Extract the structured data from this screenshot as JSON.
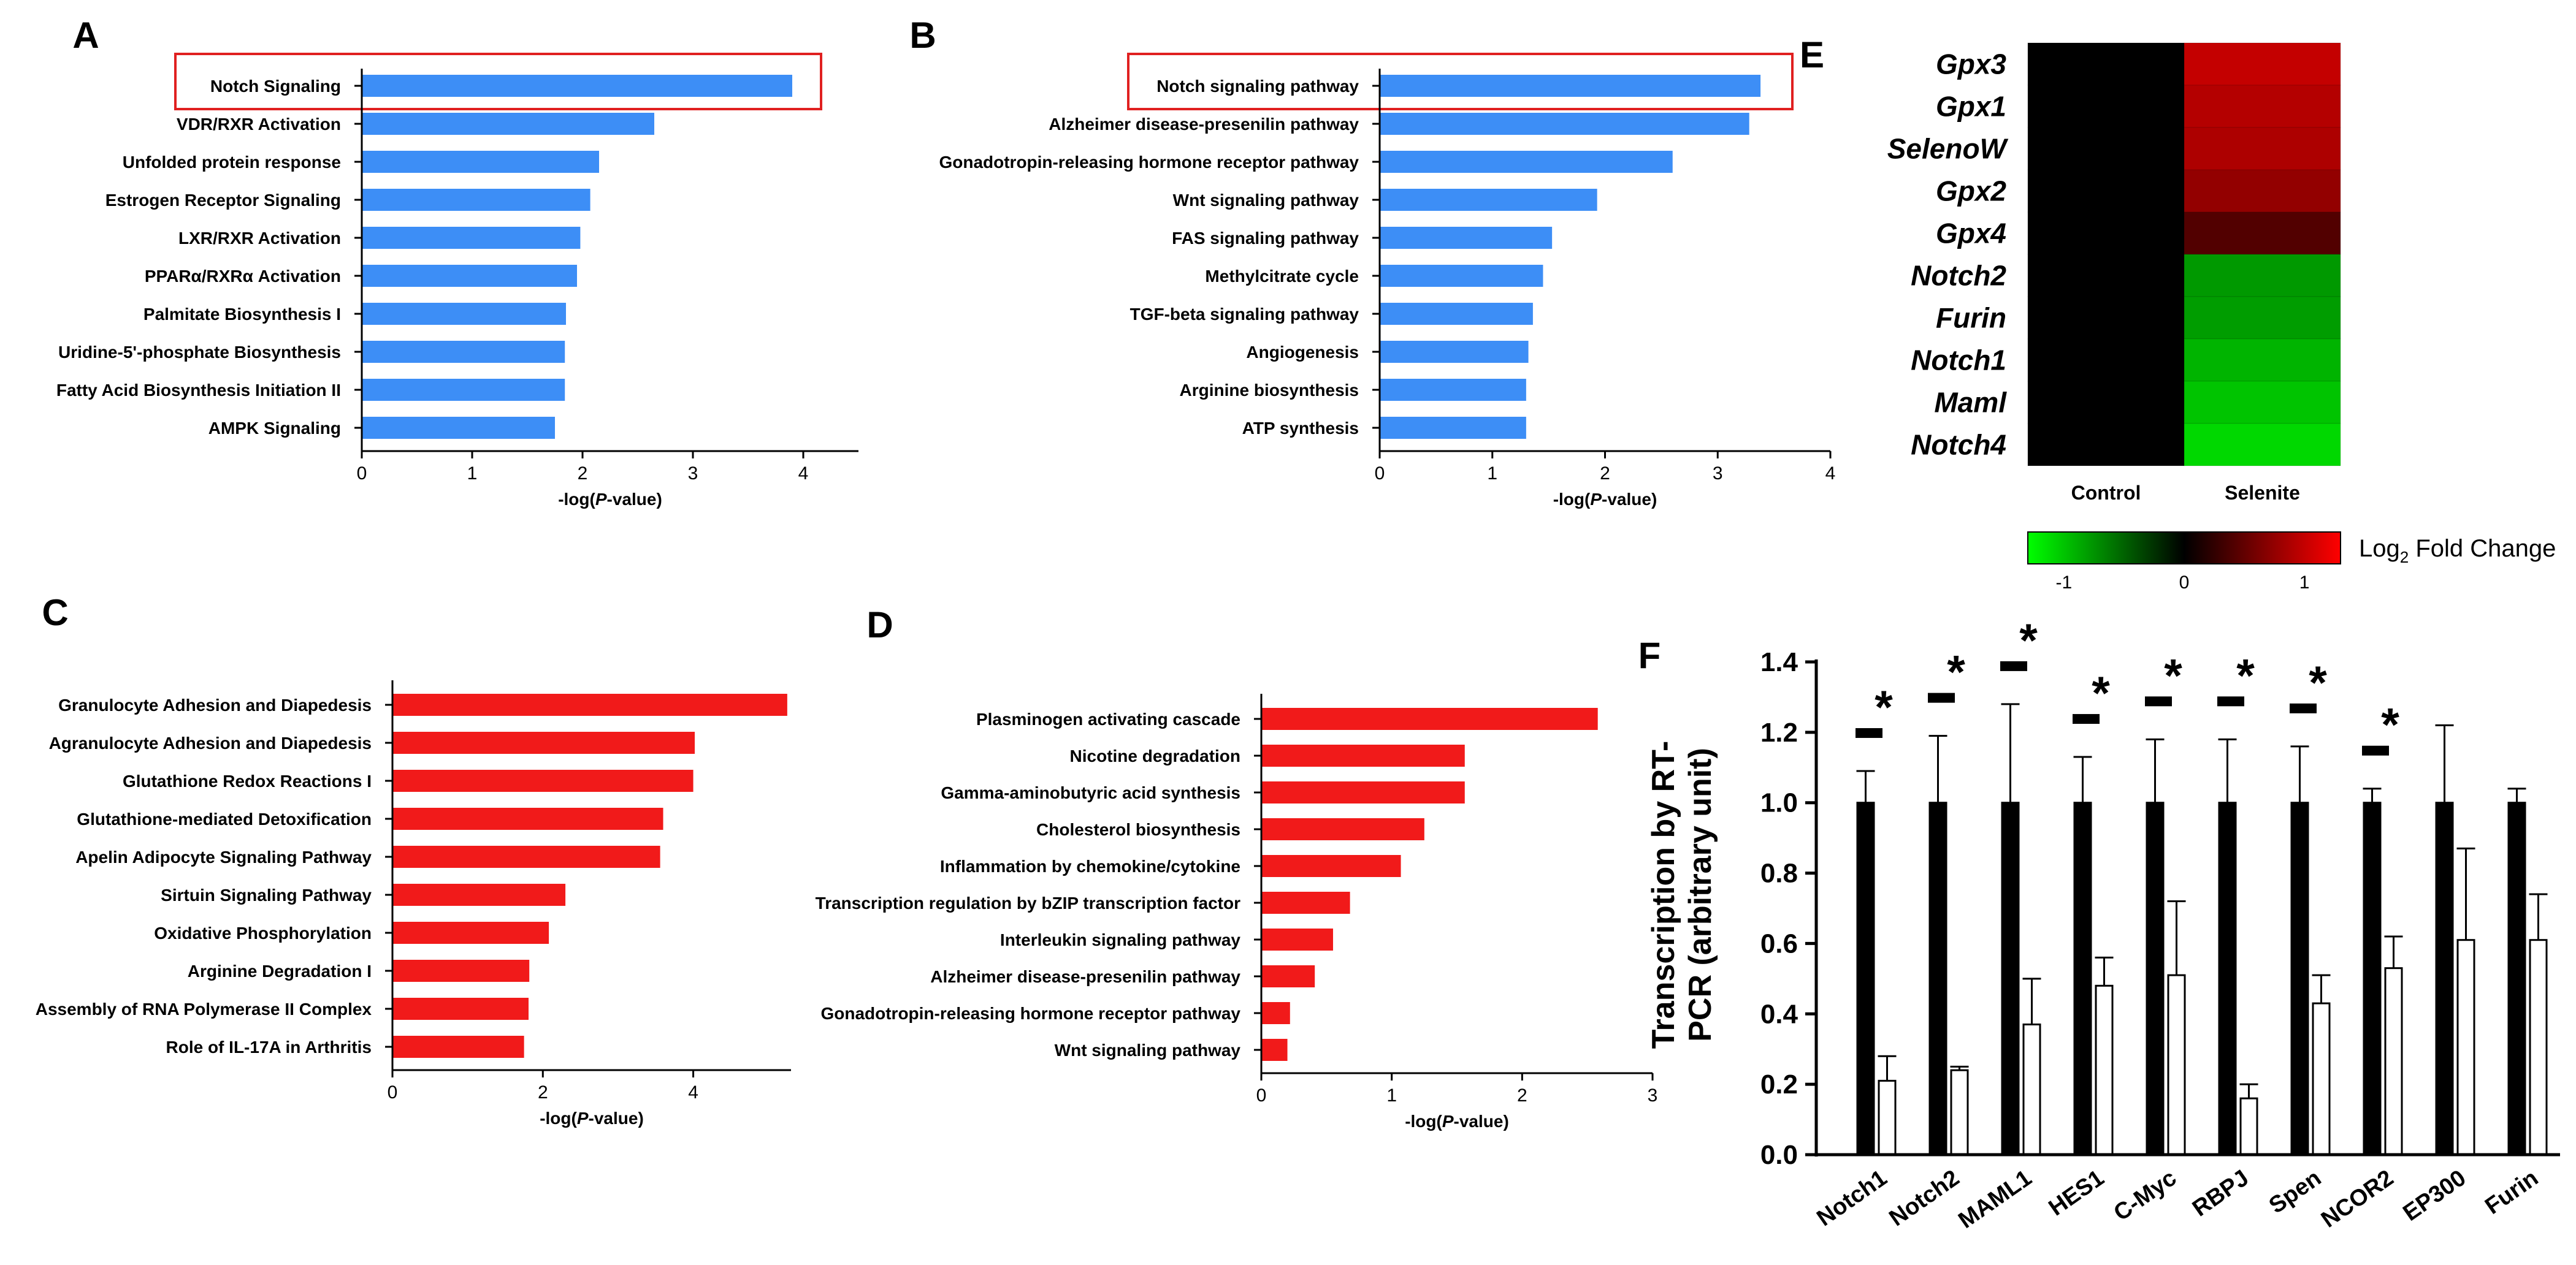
{
  "figure": {
    "panel_labels": [
      "A",
      "B",
      "C",
      "D",
      "E",
      "F"
    ],
    "colors": {
      "blue_bar": "#3d8ef6",
      "red_bar": "#f11a1a",
      "highlight_box": "#e02020",
      "control_bar": "#000000",
      "selenite_bar": "#ffffff"
    }
  },
  "chart_data": [
    {
      "panel": "A",
      "type": "bar",
      "orientation": "horizontal",
      "categories": [
        "Notch Signaling",
        "VDR/RXR Activation",
        "Unfolded protein response",
        "Estrogen Receptor Signaling",
        "LXR/RXR Activation",
        "PPARα/RXRα Activation",
        "Palmitate Biosynthesis I",
        "Uridine-5'-phosphate Biosynthesis",
        "Fatty Acid Biosynthesis Initiation II",
        "AMPK Signaling"
      ],
      "values": [
        3.9,
        2.65,
        2.15,
        2.07,
        1.98,
        1.95,
        1.85,
        1.84,
        1.84,
        1.75
      ],
      "xlim": [
        0,
        4.5
      ],
      "xticks": [
        "0",
        "1",
        "2",
        "3",
        "4"
      ],
      "xlabel_prefix": "-log(",
      "xlabel_italic": "P",
      "xlabel_suffix": "-value)",
      "highlighted": "Notch Signaling"
    },
    {
      "panel": "B",
      "type": "bar",
      "orientation": "horizontal",
      "categories": [
        "Notch signaling pathway",
        "Alzheimer disease-presenilin pathway",
        "Gonadotropin-releasing hormone receptor pathway",
        "Wnt signaling pathway",
        "FAS signaling pathway",
        "Methylcitrate cycle",
        "TGF-beta signaling pathway",
        "Angiogenesis",
        "Arginine biosynthesis",
        "ATP synthesis"
      ],
      "values": [
        3.38,
        3.28,
        2.6,
        1.93,
        1.53,
        1.45,
        1.36,
        1.32,
        1.3,
        1.3
      ],
      "xlim": [
        0,
        4
      ],
      "xticks": [
        "0",
        "1",
        "2",
        "3",
        "4"
      ],
      "xlabel_prefix": "-log(",
      "xlabel_italic": "P",
      "xlabel_suffix": "-value)",
      "highlighted": "Notch signaling pathway"
    },
    {
      "panel": "C",
      "type": "bar",
      "orientation": "horizontal",
      "categories": [
        "Granulocyte Adhesion and Diapedesis",
        "Agranulocyte Adhesion and Diapedesis",
        "Glutathione Redox Reactions I",
        "Glutathione-mediated Detoxification",
        "Apelin Adipocyte Signaling Pathway",
        "Sirtuin Signaling Pathway",
        "Oxidative Phosphorylation",
        "Arginine Degradation I",
        "Assembly of RNA Polymerase II Complex",
        "Role of IL-17A in Arthritis"
      ],
      "values": [
        5.25,
        4.02,
        4.0,
        3.6,
        3.56,
        2.3,
        2.08,
        1.82,
        1.81,
        1.75
      ],
      "xlim": [
        0,
        5.3
      ],
      "xticks": [
        "0",
        "2",
        "4"
      ],
      "xtick_values": [
        0,
        2,
        4
      ],
      "xlabel_prefix": "-log(",
      "xlabel_italic": "P",
      "xlabel_suffix": "-value)"
    },
    {
      "panel": "D",
      "type": "bar",
      "orientation": "horizontal",
      "categories": [
        "Plasminogen activating cascade",
        "Nicotine degradation",
        "Gamma-aminobutyric acid synthesis",
        "Cholesterol biosynthesis",
        "Inflammation by chemokine/cytokine",
        "Transcription regulation by bZIP transcription factor",
        "Interleukin signaling pathway",
        "Alzheimer disease-presenilin pathway",
        "Gonadotropin-releasing hormone receptor pathway",
        "Wnt signaling pathway"
      ],
      "values": [
        2.58,
        1.56,
        1.56,
        1.25,
        1.07,
        0.68,
        0.55,
        0.41,
        0.22,
        0.2
      ],
      "xlim": [
        0,
        3
      ],
      "xticks": [
        "0",
        "1",
        "2",
        "3"
      ],
      "xlabel_prefix": "-log(",
      "xlabel_italic": "P",
      "xlabel_suffix": "-value)"
    },
    {
      "panel": "E",
      "type": "heatmap",
      "rows": [
        "Gpx3",
        "Gpx1",
        "SelenoW",
        "Gpx2",
        "Gpx4",
        "Notch2",
        "Furin",
        "Notch1",
        "Maml",
        "Notch4"
      ],
      "columns": [
        "Control",
        "Selenite"
      ],
      "values": [
        [
          0,
          1.0
        ],
        [
          0,
          0.92
        ],
        [
          0,
          0.88
        ],
        [
          0,
          0.75
        ],
        [
          0,
          0.42
        ],
        [
          0,
          -0.78
        ],
        [
          0,
          -0.8
        ],
        [
          0,
          -0.92
        ],
        [
          0,
          -1.0
        ],
        [
          0,
          -1.1
        ]
      ],
      "legend": {
        "title_prefix": "Log",
        "title_sub": "2",
        "title_suffix": " Fold Change",
        "ticks": [
          "-1",
          "0",
          "1"
        ],
        "range": [
          -1.3,
          1.3
        ]
      }
    },
    {
      "panel": "F",
      "type": "bar",
      "orientation": "vertical",
      "categories": [
        "Notch1",
        "Notch2",
        "MAML1",
        "HES1",
        "C-Myc",
        "RBPJ",
        "Spen",
        "NCOR2",
        "EP300",
        "Furin"
      ],
      "series": [
        {
          "name": "Control",
          "values": [
            1.0,
            1.0,
            1.0,
            1.0,
            1.0,
            1.0,
            1.0,
            1.0,
            1.0,
            1.0
          ],
          "errors": [
            0.09,
            0.19,
            0.28,
            0.13,
            0.18,
            0.18,
            0.16,
            0.04,
            0.22,
            0.04
          ]
        },
        {
          "name": "Selenite",
          "values": [
            0.21,
            0.24,
            0.37,
            0.48,
            0.51,
            0.16,
            0.43,
            0.53,
            0.61,
            0.61
          ],
          "errors": [
            0.07,
            0.01,
            0.13,
            0.08,
            0.21,
            0.04,
            0.08,
            0.09,
            0.26,
            0.13
          ]
        }
      ],
      "significant": [
        true,
        true,
        true,
        true,
        true,
        true,
        true,
        true,
        false,
        false
      ],
      "significance_mark": "*",
      "ylabel_line1": "Transcription by RT-",
      "ylabel_line2": "PCR (arbitrary unit)",
      "ylim": [
        0,
        1.4
      ],
      "yticks": [
        "0.0",
        "0.2",
        "0.4",
        "0.6",
        "0.8",
        "1.0",
        "1.2",
        "1.4"
      ]
    }
  ]
}
